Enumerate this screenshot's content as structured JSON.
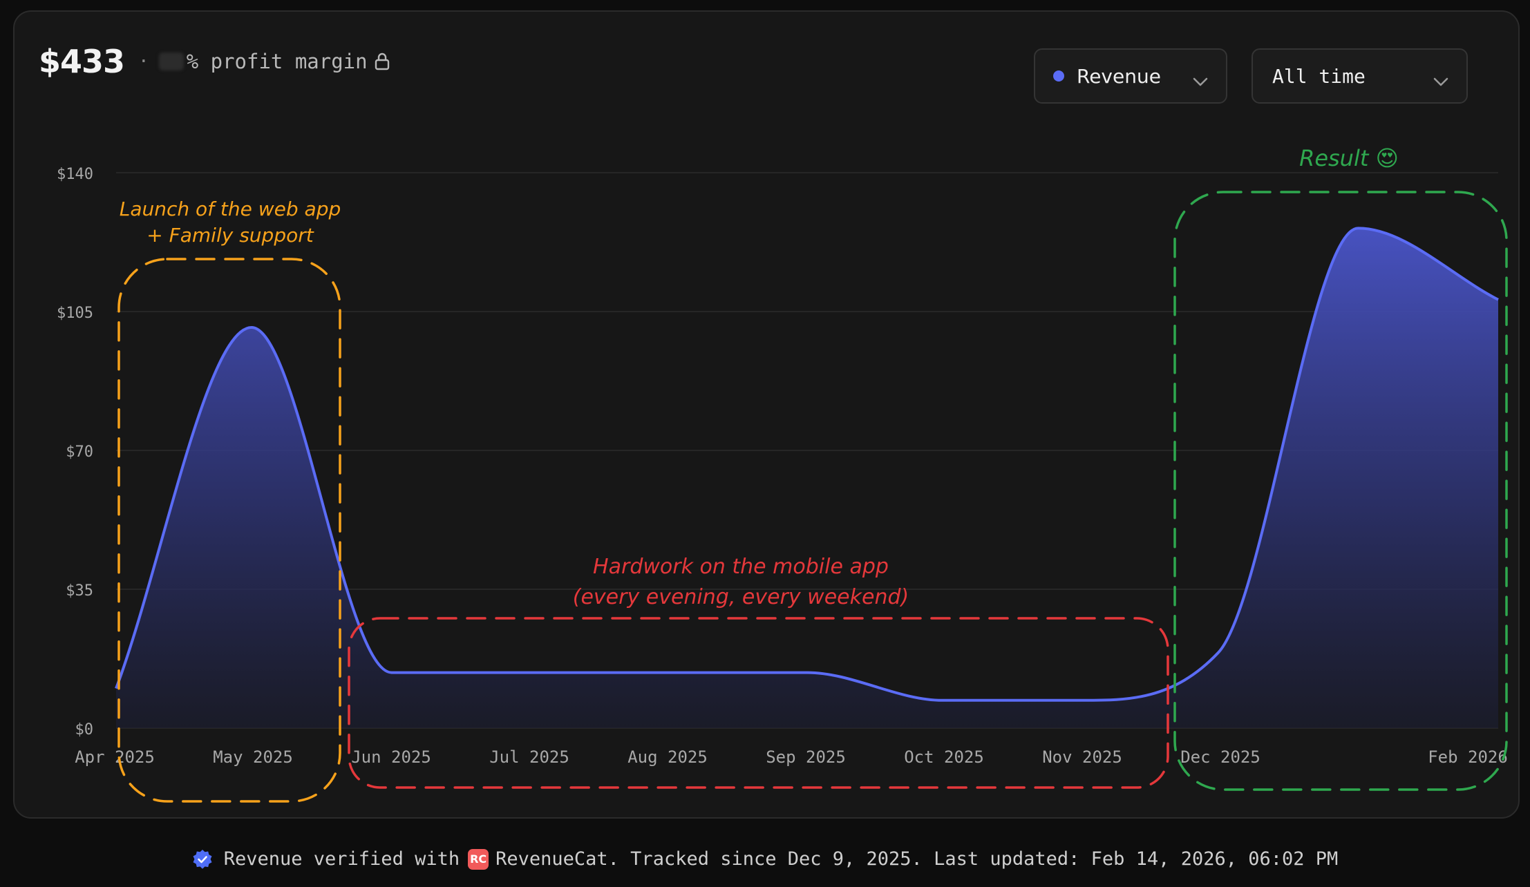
{
  "header": {
    "amount": "$433",
    "separator": "·",
    "margin_label": "% profit margin",
    "lock_icon": "lock-icon"
  },
  "controls": {
    "metric_label": "Revenue",
    "range_label": "All time",
    "metric_dot_color": "#5b6cf5"
  },
  "chart_data": {
    "type": "area",
    "y_ticks": [
      "$0",
      "$35",
      "$70",
      "$105",
      "$140"
    ],
    "ylim": [
      0,
      140
    ],
    "x_labels": [
      "Apr 2025",
      "May 2025",
      "Jun 2025",
      "Jul 2025",
      "Aug 2025",
      "Sep 2025",
      "Oct 2025",
      "Nov 2025",
      "Dec 2025",
      "Feb 2026"
    ],
    "series": [
      {
        "color": "#5b6cf5",
        "points": [
          {
            "x": "2025-04-01",
            "y": 10
          },
          {
            "x": "2025-05-01",
            "y": 101
          },
          {
            "x": "2025-06-01",
            "y": 14
          },
          {
            "x": "2025-07-01",
            "y": 14
          },
          {
            "x": "2025-08-01",
            "y": 14
          },
          {
            "x": "2025-09-01",
            "y": 14
          },
          {
            "x": "2025-10-01",
            "y": 7
          },
          {
            "x": "2025-11-01",
            "y": 7
          },
          {
            "x": "2025-12-01",
            "y": 19
          },
          {
            "x": "2026-01-01",
            "y": 126
          },
          {
            "x": "2026-02-01",
            "y": 108
          }
        ]
      }
    ],
    "grid": true,
    "annotations": [
      {
        "lines": [
          "Launch of the web app",
          "+ Family support"
        ],
        "color": "#f7a21b"
      },
      {
        "lines": [
          "Hardwork on the mobile app",
          "(every evening, every weekend)"
        ],
        "color": "#e5383b"
      },
      {
        "lines": [
          "Result 😍"
        ],
        "color": "#2fa84f"
      }
    ]
  },
  "footer": {
    "verified_text": "Revenue verified with",
    "rc_logo_text": "RC",
    "brand": "RevenueCat.",
    "tracked": "Tracked since Dec 9, 2025. Last updated: Feb 14, 2026, 06:02 PM"
  }
}
